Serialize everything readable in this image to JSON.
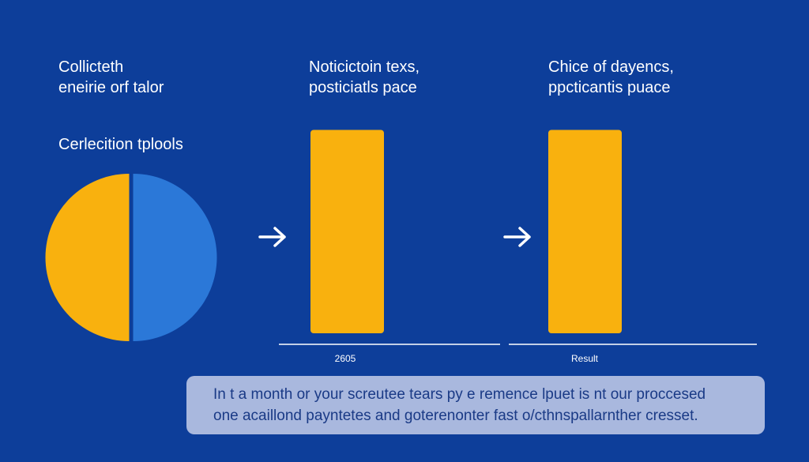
{
  "colors": {
    "background": "#0d3e9a",
    "accent_orange": "#f9b10e",
    "accent_blue": "#2b78d8",
    "text": "#ffffff",
    "caption_box": "#a9b8de",
    "caption_text": "#1a3a86"
  },
  "panels": [
    {
      "heading_lines": [
        "Collicteth",
        "eneirie orf talor"
      ],
      "subheading": "Cerlecition tplools"
    },
    {
      "heading_lines": [
        "Noticictoin texs,",
        "posticiatls pace"
      ]
    },
    {
      "heading_lines": [
        "Chice of dayencs,",
        "ppcticantis puace"
      ]
    }
  ],
  "arrows": [
    {
      "icon": "arrow-right-icon"
    },
    {
      "icon": "arrow-right-icon"
    }
  ],
  "caption": {
    "lines": [
      "In t a month or your screutee tears py e remence lpuet is nt our proccesed",
      "one acaillond payntetes and goterenonter  fast o/cthnspallarnther cresset."
    ]
  },
  "chart_data": [
    {
      "type": "pie",
      "title": "Cerlecition tplools",
      "slices": [
        {
          "name": "",
          "value": 50,
          "color": "#2b78d8"
        },
        {
          "name": "",
          "value": 50,
          "color": "#f9b10e"
        }
      ]
    },
    {
      "type": "bar",
      "title": "Noticictoin texs, posticiatls pace",
      "categories": [
        "2605"
      ],
      "values": [
        1
      ],
      "ylim": [
        0,
        1.06
      ],
      "color": "#f9b10e"
    },
    {
      "type": "bar",
      "title": "Chice of dayencs, ppcticantis puace",
      "categories": [
        "Result"
      ],
      "values": [
        1
      ],
      "ylim": [
        0,
        1.06
      ],
      "color": "#f9b10e"
    }
  ]
}
